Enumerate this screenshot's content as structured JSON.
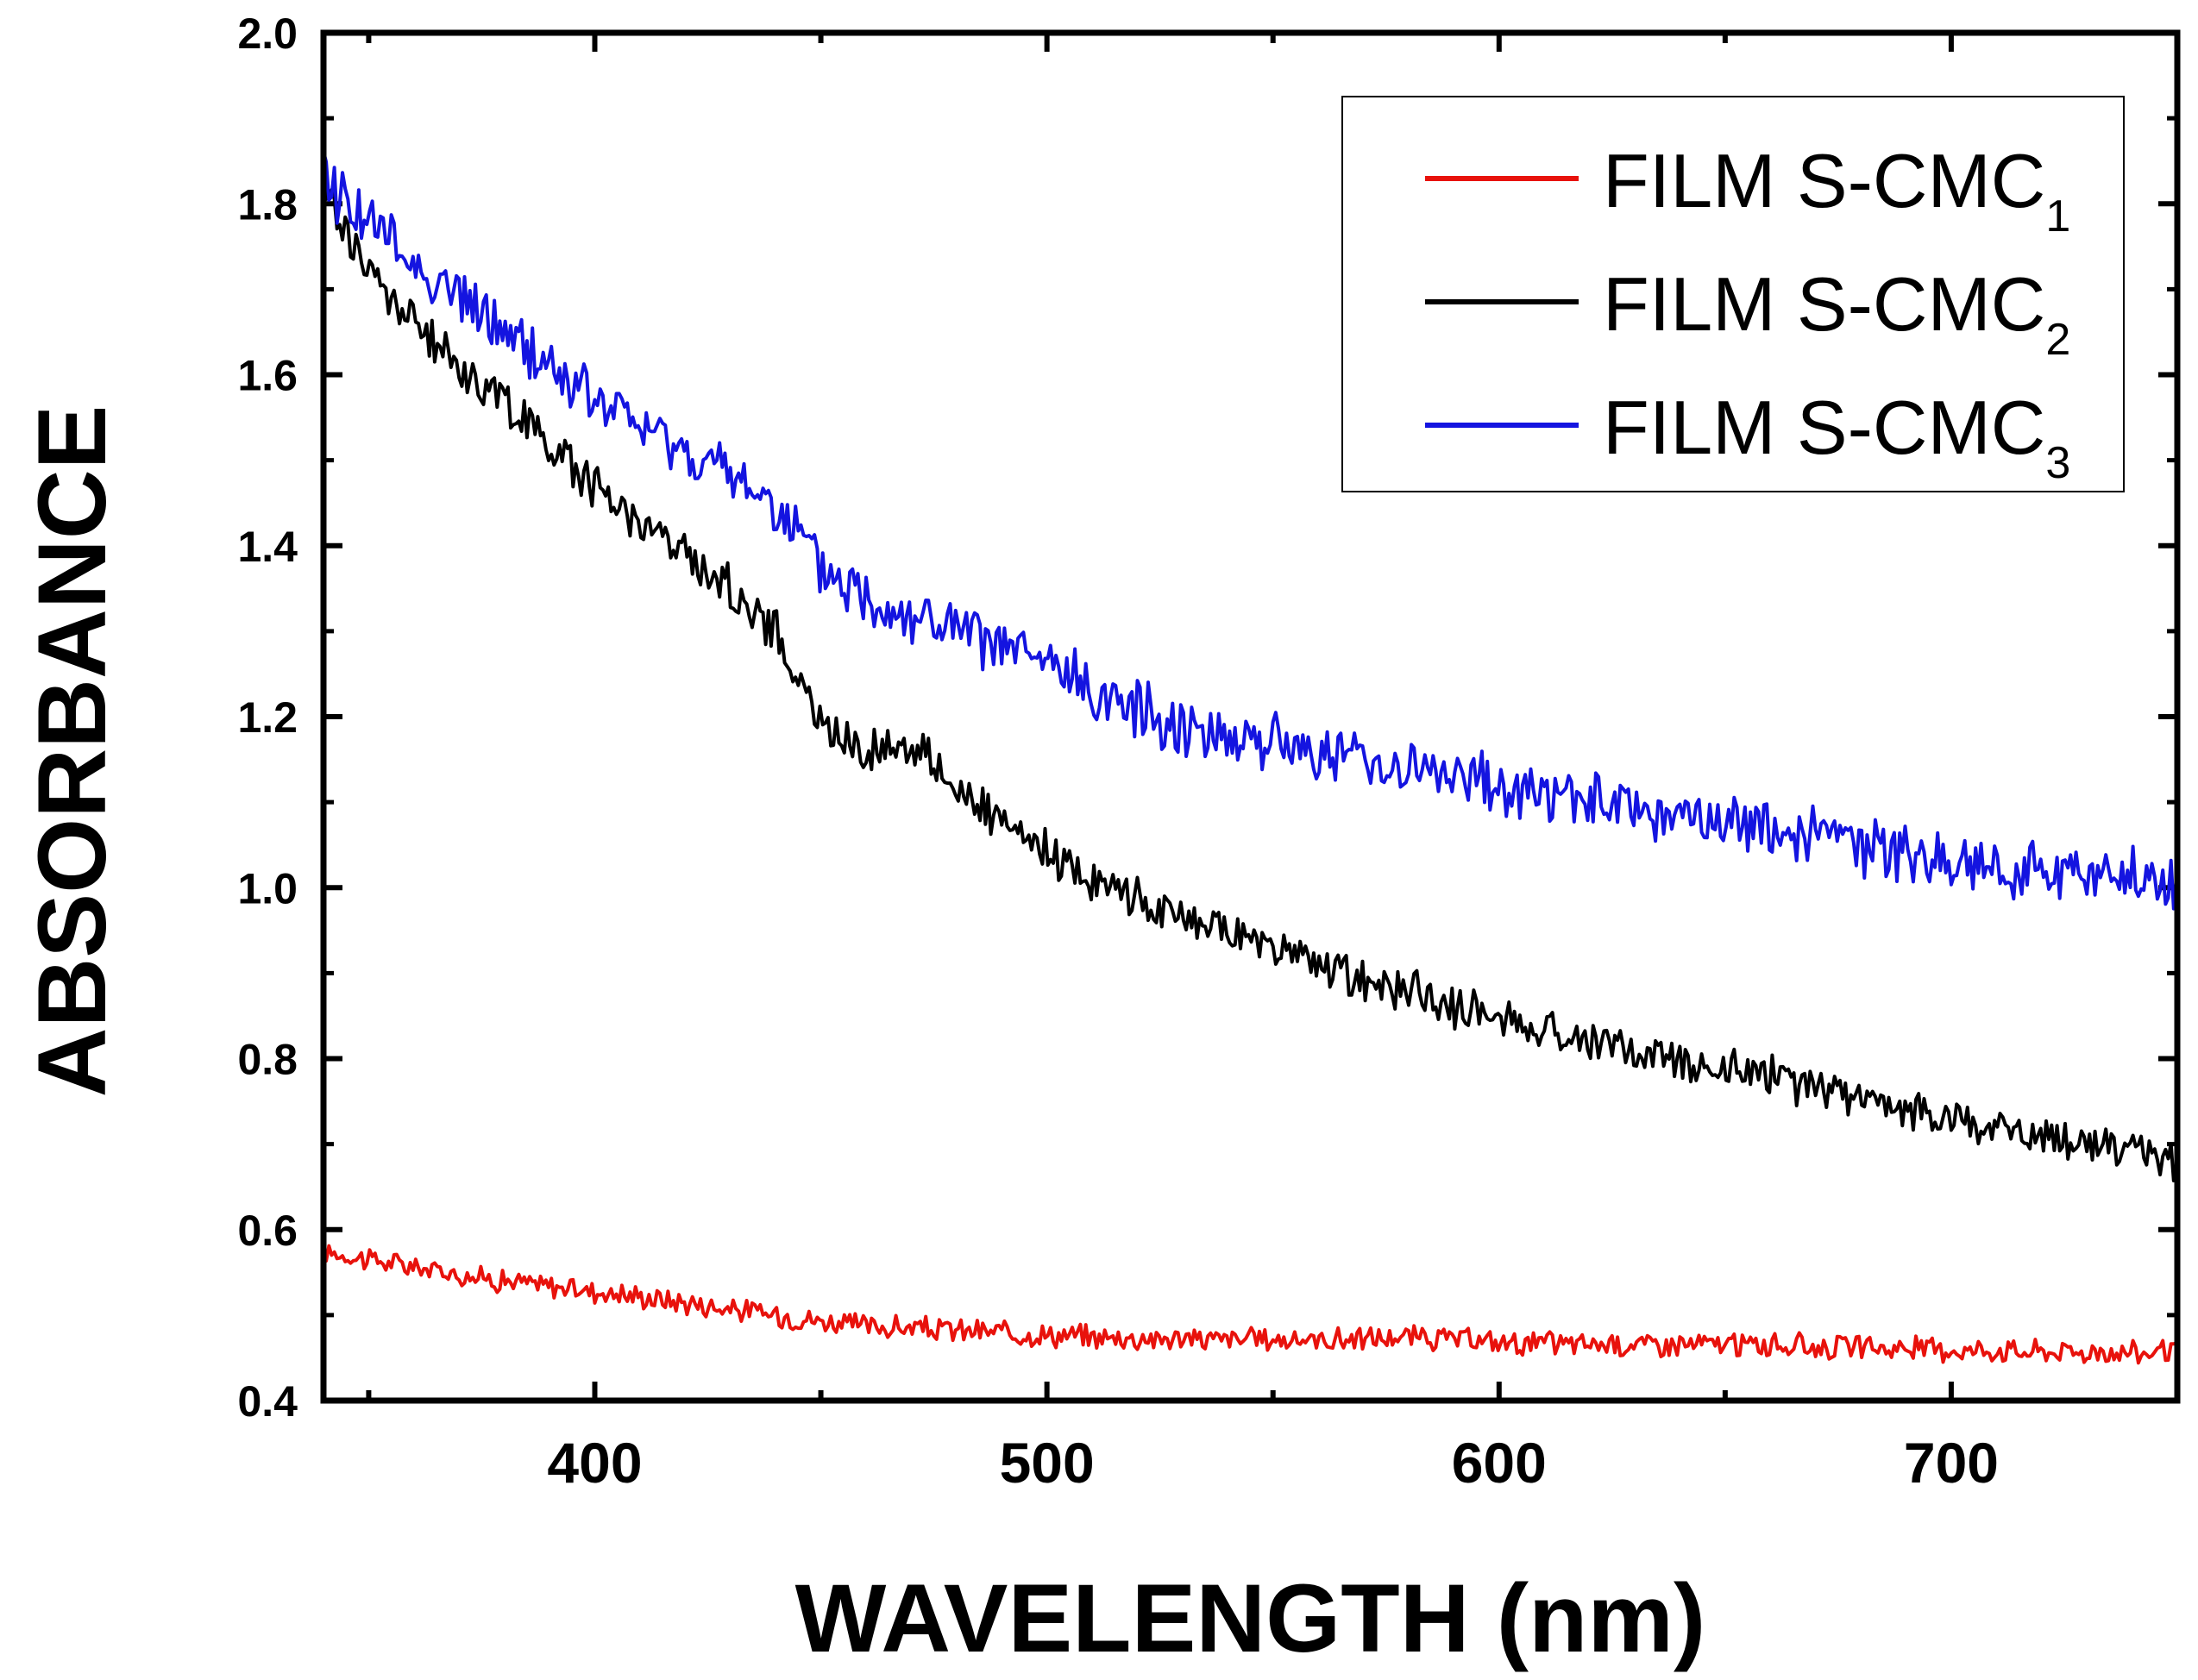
{
  "chart_data": {
    "type": "line",
    "xlabel": "WAVELENGTH (nm)",
    "ylabel": "ABSORBANCE",
    "xlim": [
      340,
      750
    ],
    "ylim": [
      0.4,
      2.0
    ],
    "x_ticks": [
      400,
      500,
      600,
      700
    ],
    "y_ticks": [
      0.4,
      0.6,
      0.8,
      1.0,
      1.2,
      1.4,
      1.6,
      1.8,
      2.0
    ],
    "y_tick_labels": [
      "0.4",
      "0.6",
      "0.8",
      "1.0",
      "1.2",
      "1.4",
      "1.6",
      "1.8",
      "2.0"
    ],
    "legend_position": "top-right",
    "series": [
      {
        "name": "FILM S-CMC",
        "subscript": "1",
        "color": "#e8120c",
        "x": [
          340,
          360,
          380,
          400,
          420,
          440,
          460,
          480,
          500,
          520,
          540,
          560,
          580,
          600,
          620,
          640,
          660,
          680,
          700,
          720,
          740,
          750
        ],
        "values": [
          0.575,
          0.556,
          0.54,
          0.528,
          0.515,
          0.5,
          0.487,
          0.482,
          0.477,
          0.473,
          0.472,
          0.471,
          0.474,
          0.468,
          0.466,
          0.466,
          0.465,
          0.462,
          0.46,
          0.458,
          0.456,
          0.458
        ]
      },
      {
        "name": "FILM S-CMC",
        "subscript": "2",
        "color": "#000000",
        "x": [
          340,
          350,
          360,
          370,
          380,
          390,
          400,
          410,
          420,
          430,
          440,
          450,
          460,
          470,
          480,
          490,
          500,
          510,
          520,
          530,
          540,
          550,
          560,
          570,
          580,
          590,
          600,
          620,
          640,
          660,
          680,
          700,
          720,
          740,
          750
        ],
        "values": [
          1.82,
          1.72,
          1.66,
          1.61,
          1.57,
          1.52,
          1.47,
          1.43,
          1.39,
          1.35,
          1.3,
          1.19,
          1.16,
          1.17,
          1.12,
          1.07,
          1.04,
          1.01,
          0.99,
          0.96,
          0.95,
          0.93,
          0.91,
          0.89,
          0.88,
          0.86,
          0.85,
          0.82,
          0.8,
          0.78,
          0.75,
          0.73,
          0.71,
          0.69,
          0.68
        ]
      },
      {
        "name": "FILM S-CMC",
        "subscript": "3",
        "color": "#1414e0",
        "x": [
          340,
          350,
          360,
          370,
          380,
          390,
          400,
          410,
          420,
          430,
          440,
          450,
          460,
          470,
          480,
          490,
          500,
          510,
          520,
          530,
          540,
          550,
          560,
          570,
          580,
          590,
          600,
          620,
          640,
          660,
          680,
          700,
          720,
          740,
          750
        ],
        "values": [
          1.83,
          1.78,
          1.73,
          1.69,
          1.65,
          1.61,
          1.57,
          1.54,
          1.51,
          1.48,
          1.45,
          1.37,
          1.34,
          1.32,
          1.3,
          1.28,
          1.26,
          1.23,
          1.21,
          1.19,
          1.18,
          1.17,
          1.16,
          1.15,
          1.14,
          1.13,
          1.12,
          1.1,
          1.08,
          1.07,
          1.05,
          1.03,
          1.02,
          1.01,
          1.0
        ]
      }
    ]
  }
}
